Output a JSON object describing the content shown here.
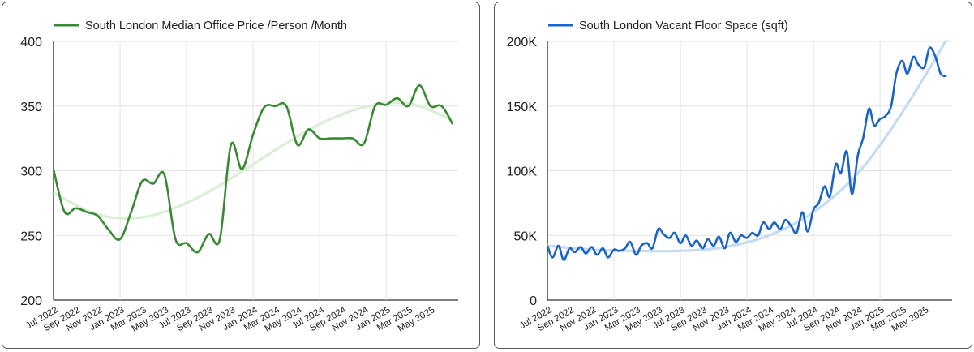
{
  "chart_data": [
    {
      "type": "line",
      "legend": "South London Median Office Price /Person /Month",
      "color": "#3a8a34",
      "trend_color": "#dbeed6",
      "ylim": [
        200,
        400
      ],
      "y_ticks": [
        200,
        250,
        300,
        350,
        400
      ],
      "y_tick_labels": [
        "200",
        "250",
        "300",
        "350",
        "400"
      ],
      "x_tick_labels": [
        "Jul 2022",
        "Sep 2022",
        "Nov 2022",
        "Jan 2023",
        "Mar 2023",
        "May 2023",
        "Jul 2023",
        "Sep 2023",
        "Nov 2023",
        "Jan 2024",
        "Mar 2024",
        "May 2024",
        "Jul 2024",
        "Sep 2024",
        "Nov 2024",
        "Jan 2025",
        "Mar 2025",
        "May 2025"
      ],
      "grid": true,
      "series": [
        {
          "values": [
            [
              "2022-07",
              301
            ],
            [
              "2022-08",
              268
            ],
            [
              "2022-09",
              271
            ],
            [
              "2022-10",
              268
            ],
            [
              "2022-11",
              265
            ],
            [
              "2022-12",
              254
            ],
            [
              "2023-01",
              247
            ],
            [
              "2023-02",
              268
            ],
            [
              "2023-03",
              292
            ],
            [
              "2023-04",
              290
            ],
            [
              "2023-05",
              297
            ],
            [
              "2023-06",
              247
            ],
            [
              "2023-07",
              244
            ],
            [
              "2023-08",
              237
            ],
            [
              "2023-09",
              251
            ],
            [
              "2023-10",
              247
            ],
            [
              "2023-11",
              320
            ],
            [
              "2023-12",
              301
            ],
            [
              "2024-01",
              328
            ],
            [
              "2024-02",
              349
            ],
            [
              "2024-03",
              350
            ],
            [
              "2024-04",
              350
            ],
            [
              "2024-05",
              320
            ],
            [
              "2024-06",
              332
            ],
            [
              "2024-07",
              325
            ],
            [
              "2024-08",
              325
            ],
            [
              "2024-09",
              325
            ],
            [
              "2024-10",
              325
            ],
            [
              "2024-11",
              321
            ],
            [
              "2024-12",
              350
            ],
            [
              "2025-01",
              351
            ],
            [
              "2025-02",
              356
            ],
            [
              "2025-03",
              350
            ],
            [
              "2025-04",
              366
            ],
            [
              "2025-05",
              350
            ],
            [
              "2025-06",
              350
            ],
            [
              "2025-07",
              336
            ]
          ]
        }
      ],
      "trend": [
        [
          "2022-07",
          283
        ],
        [
          "2022-11",
          266
        ],
        [
          "2023-03",
          264
        ],
        [
          "2023-07",
          275
        ],
        [
          "2023-11",
          294
        ],
        [
          "2024-03",
          316
        ],
        [
          "2024-07",
          336
        ],
        [
          "2024-11",
          349
        ],
        [
          "2025-03",
          352
        ],
        [
          "2025-07",
          339
        ]
      ]
    },
    {
      "type": "line",
      "legend": "South London Vacant Floor Space (sqft)",
      "color": "#1a64c6",
      "trend_color": "#c6dbf0",
      "ylim": [
        0,
        200000
      ],
      "y_ticks": [
        0,
        50000,
        100000,
        150000,
        200000
      ],
      "y_tick_labels": [
        "0",
        "50K",
        "100K",
        "150K",
        "200K"
      ],
      "x_tick_labels": [
        "Jul 2022",
        "Sep 2022",
        "Nov 2022",
        "Jan 2023",
        "Mar 2023",
        "May 2023",
        "Jul 2023",
        "Sep 2023",
        "Nov 2023",
        "Jan 2024",
        "Mar 2024",
        "May 2024",
        "Jul 2024",
        "Sep 2024",
        "Nov 2024",
        "Jan 2025",
        "Mar 2025",
        "May 2025"
      ],
      "grid": true,
      "series": [
        {
          "values": [
            [
              "2022-07",
              42000
            ],
            [
              "2022-07-15",
              33000
            ],
            [
              "2022-08",
              42000
            ],
            [
              "2022-08-15",
              31000
            ],
            [
              "2022-09",
              40000
            ],
            [
              "2022-09-15",
              37000
            ],
            [
              "2022-10",
              41000
            ],
            [
              "2022-10-15",
              36000
            ],
            [
              "2022-11",
              41000
            ],
            [
              "2022-11-15",
              35000
            ],
            [
              "2022-12",
              40000
            ],
            [
              "2022-12-15",
              33000
            ],
            [
              "2023-01",
              39000
            ],
            [
              "2023-01-15",
              38000
            ],
            [
              "2023-02",
              40000
            ],
            [
              "2023-02-15",
              45000
            ],
            [
              "2023-03",
              35000
            ],
            [
              "2023-03-15",
              42000
            ],
            [
              "2023-04",
              44000
            ],
            [
              "2023-04-15",
              40000
            ],
            [
              "2023-05",
              55000
            ],
            [
              "2023-05-15",
              51000
            ],
            [
              "2023-06",
              48000
            ],
            [
              "2023-06-15",
              52000
            ],
            [
              "2023-07",
              44000
            ],
            [
              "2023-07-15",
              50000
            ],
            [
              "2023-08",
              42000
            ],
            [
              "2023-08-15",
              46000
            ],
            [
              "2023-09",
              40000
            ],
            [
              "2023-09-15",
              47000
            ],
            [
              "2023-10",
              42000
            ],
            [
              "2023-10-15",
              49000
            ],
            [
              "2023-11",
              40000
            ],
            [
              "2023-11-15",
              52000
            ],
            [
              "2023-12",
              45000
            ],
            [
              "2023-12-15",
              50000
            ],
            [
              "2024-01",
              48000
            ],
            [
              "2024-01-15",
              52000
            ],
            [
              "2024-02",
              50000
            ],
            [
              "2024-02-15",
              60000
            ],
            [
              "2024-03",
              55000
            ],
            [
              "2024-03-15",
              60000
            ],
            [
              "2024-04",
              55000
            ],
            [
              "2024-04-15",
              62000
            ],
            [
              "2024-05",
              57000
            ],
            [
              "2024-05-15",
              52000
            ],
            [
              "2024-06",
              68000
            ],
            [
              "2024-06-15",
              53000
            ],
            [
              "2024-07",
              70000
            ],
            [
              "2024-07-15",
              75000
            ],
            [
              "2024-08",
              88000
            ],
            [
              "2024-08-15",
              80000
            ],
            [
              "2024-09",
              105000
            ],
            [
              "2024-09-15",
              98000
            ],
            [
              "2024-10",
              115000
            ],
            [
              "2024-10-15",
              82000
            ],
            [
              "2024-11",
              112000
            ],
            [
              "2024-11-15",
              125000
            ],
            [
              "2024-12",
              148000
            ],
            [
              "2024-12-15",
              135000
            ],
            [
              "2025-01",
              140000
            ],
            [
              "2025-01-15",
              142000
            ],
            [
              "2025-02",
              150000
            ],
            [
              "2025-02-15",
              175000
            ],
            [
              "2025-03",
              185000
            ],
            [
              "2025-03-15",
              175000
            ],
            [
              "2025-04",
              188000
            ],
            [
              "2025-04-15",
              182000
            ],
            [
              "2025-05",
              180000
            ],
            [
              "2025-05-15",
              195000
            ],
            [
              "2025-06",
              188000
            ],
            [
              "2025-06-15",
              175000
            ],
            [
              "2025-07",
              173000
            ]
          ]
        }
      ],
      "trend": [
        [
          "2022-07",
          42000
        ],
        [
          "2022-11",
          39000
        ],
        [
          "2023-03",
          38000
        ],
        [
          "2023-07",
          38000
        ],
        [
          "2023-11",
          41000
        ],
        [
          "2024-03",
          50000
        ],
        [
          "2024-07",
          68000
        ],
        [
          "2024-11",
          98000
        ],
        [
          "2025-03",
          145000
        ],
        [
          "2025-07",
          205000
        ]
      ]
    }
  ]
}
